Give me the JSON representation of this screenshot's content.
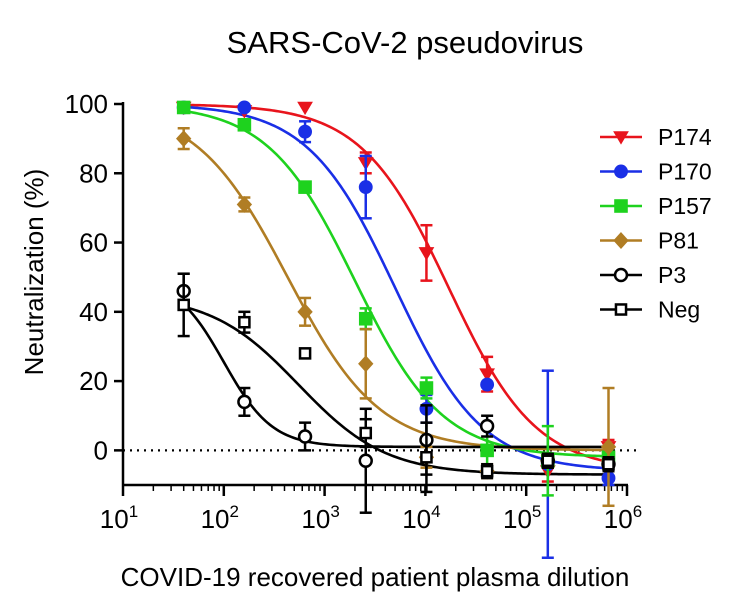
{
  "chart_data": {
    "type": "scatter",
    "title": "SARS-CoV-2 pseudovirus",
    "xlabel": "COVID-19 recovered patient plasma dilution",
    "ylabel": "Neutralization (%)",
    "xscale": "log",
    "xlim": [
      10,
      1000000
    ],
    "ylim": [
      -10,
      100
    ],
    "x_ticks": [
      {
        "base": "10",
        "exp": "1"
      },
      {
        "base": "10",
        "exp": "2"
      },
      {
        "base": "10",
        "exp": "3"
      },
      {
        "base": "10",
        "exp": "4"
      },
      {
        "base": "10",
        "exp": "5"
      },
      {
        "base": "10",
        "exp": "6"
      }
    ],
    "y_ticks": [
      "0",
      "20",
      "40",
      "60",
      "80",
      "100"
    ],
    "reference_line": {
      "y": 0,
      "style": "dotted"
    },
    "legend_position": "right",
    "x": [
      40,
      160,
      640,
      2560,
      10240,
      40960,
      163840,
      655360
    ],
    "series": [
      {
        "name": "P174",
        "color": "#e8141c",
        "marker": "triangle-down",
        "filled": true,
        "values": [
          99,
          98,
          99,
          83,
          57,
          22,
          -6,
          1
        ],
        "errors": [
          0,
          0,
          0,
          3,
          8,
          5,
          3,
          2
        ],
        "fit": {
          "bottom": -6,
          "top": 100,
          "ec50": 17000,
          "hill": 1.0
        }
      },
      {
        "name": "P170",
        "color": "#1a2fe6",
        "marker": "circle",
        "filled": true,
        "values": [
          99,
          99,
          92,
          76,
          12,
          19,
          -4,
          -8
        ],
        "errors": [
          0,
          0,
          3,
          9,
          4,
          0,
          27,
          2
        ],
        "fit": {
          "bottom": -6,
          "top": 100,
          "ec50": 5000,
          "hill": 1.0
        }
      },
      {
        "name": "P157",
        "color": "#1ed21e",
        "marker": "square",
        "filled": true,
        "values": [
          99,
          94,
          76,
          38,
          18,
          0,
          -3,
          -2
        ],
        "errors": [
          0,
          0,
          0,
          3,
          3,
          7,
          10,
          3
        ],
        "fit": {
          "bottom": -2,
          "top": 100,
          "ec50": 2000,
          "hill": 1.0
        }
      },
      {
        "name": "P81",
        "color": "#b07d24",
        "marker": "diamond",
        "filled": true,
        "values": [
          90,
          71,
          40,
          25,
          -2,
          -6,
          -3,
          1
        ],
        "errors": [
          3,
          2,
          4,
          10,
          3,
          2,
          2,
          17
        ],
        "fit": {
          "bottom": 0,
          "top": 100,
          "ec50": 430,
          "hill": 0.95
        }
      },
      {
        "name": "P3",
        "color": "#000000",
        "marker": "circle",
        "filled": false,
        "values": [
          46,
          14,
          4,
          -3,
          3,
          7,
          -3,
          -4
        ],
        "errors": [
          5,
          4,
          4,
          15,
          10,
          3,
          2,
          2
        ],
        "fit": {
          "bottom": 1,
          "top": 50,
          "ec50": 100,
          "hill": 1.8
        }
      },
      {
        "name": "Neg",
        "color": "#000000",
        "marker": "square",
        "filled": false,
        "values": [
          42,
          37,
          28,
          5,
          -2,
          -6,
          -3,
          -4
        ],
        "errors": [
          9,
          3,
          0,
          4,
          10,
          2,
          2,
          2
        ],
        "fit": {
          "bottom": -7,
          "top": 45,
          "ec50": 550,
          "hill": 1.0
        }
      }
    ]
  }
}
